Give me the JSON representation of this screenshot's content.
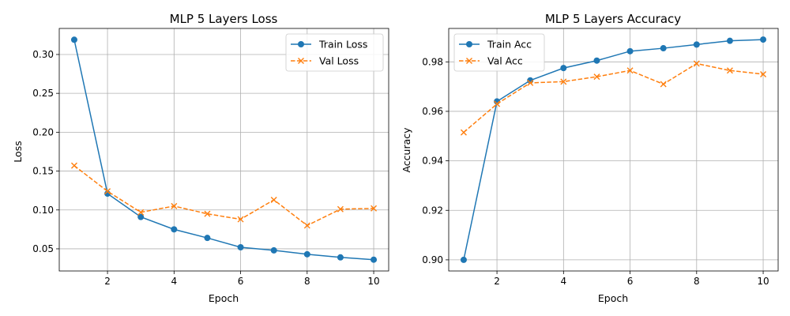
{
  "chart_data": [
    {
      "type": "line",
      "title": "MLP 5 Layers Loss",
      "xlabel": "Epoch",
      "ylabel": "Loss",
      "x": [
        1,
        2,
        3,
        4,
        5,
        6,
        7,
        8,
        9,
        10
      ],
      "xlim": [
        0.55,
        10.45
      ],
      "ylim": [
        0.0215,
        0.3335
      ],
      "xticks": [
        2,
        4,
        6,
        8,
        10
      ],
      "xtick_labels": [
        "2",
        "4",
        "6",
        "8",
        "10"
      ],
      "yticks": [
        0.05,
        0.1,
        0.15,
        0.2,
        0.25,
        0.3
      ],
      "ytick_labels": [
        "0.05",
        "0.10",
        "0.15",
        "0.20",
        "0.25",
        "0.30"
      ],
      "grid": true,
      "legend_position": "top-right",
      "series": [
        {
          "name": "Train Loss",
          "values": [
            0.319,
            0.121,
            0.091,
            0.075,
            0.064,
            0.052,
            0.048,
            0.043,
            0.039,
            0.036
          ],
          "color": "#1f77b4",
          "marker": "circle",
          "linestyle": "solid"
        },
        {
          "name": "Val Loss",
          "values": [
            0.157,
            0.124,
            0.097,
            0.105,
            0.095,
            0.088,
            0.113,
            0.08,
            0.101,
            0.102
          ],
          "color": "#ff7f0e",
          "marker": "x",
          "linestyle": "dashed"
        }
      ]
    },
    {
      "type": "line",
      "title": "MLP 5 Layers Accuracy",
      "xlabel": "Epoch",
      "ylabel": "Accuracy",
      "x": [
        1,
        2,
        3,
        4,
        5,
        6,
        7,
        8,
        9,
        10
      ],
      "xlim": [
        0.55,
        10.45
      ],
      "ylim": [
        0.8955,
        0.9935
      ],
      "xticks": [
        2,
        4,
        6,
        8,
        10
      ],
      "xtick_labels": [
        "2",
        "4",
        "6",
        "8",
        "10"
      ],
      "yticks": [
        0.9,
        0.92,
        0.94,
        0.96,
        0.98
      ],
      "ytick_labels": [
        "0.90",
        "0.92",
        "0.94",
        "0.96",
        "0.98"
      ],
      "grid": true,
      "legend_position": "top-left",
      "series": [
        {
          "name": "Train Acc",
          "values": [
            0.9,
            0.964,
            0.9725,
            0.9775,
            0.9805,
            0.9843,
            0.9855,
            0.987,
            0.9885,
            0.989
          ],
          "color": "#1f77b4",
          "marker": "circle",
          "linestyle": "solid"
        },
        {
          "name": "Val Acc",
          "values": [
            0.9515,
            0.963,
            0.9715,
            0.972,
            0.974,
            0.9765,
            0.971,
            0.9793,
            0.9765,
            0.975
          ],
          "color": "#ff7f0e",
          "marker": "x",
          "linestyle": "dashed"
        }
      ]
    }
  ]
}
